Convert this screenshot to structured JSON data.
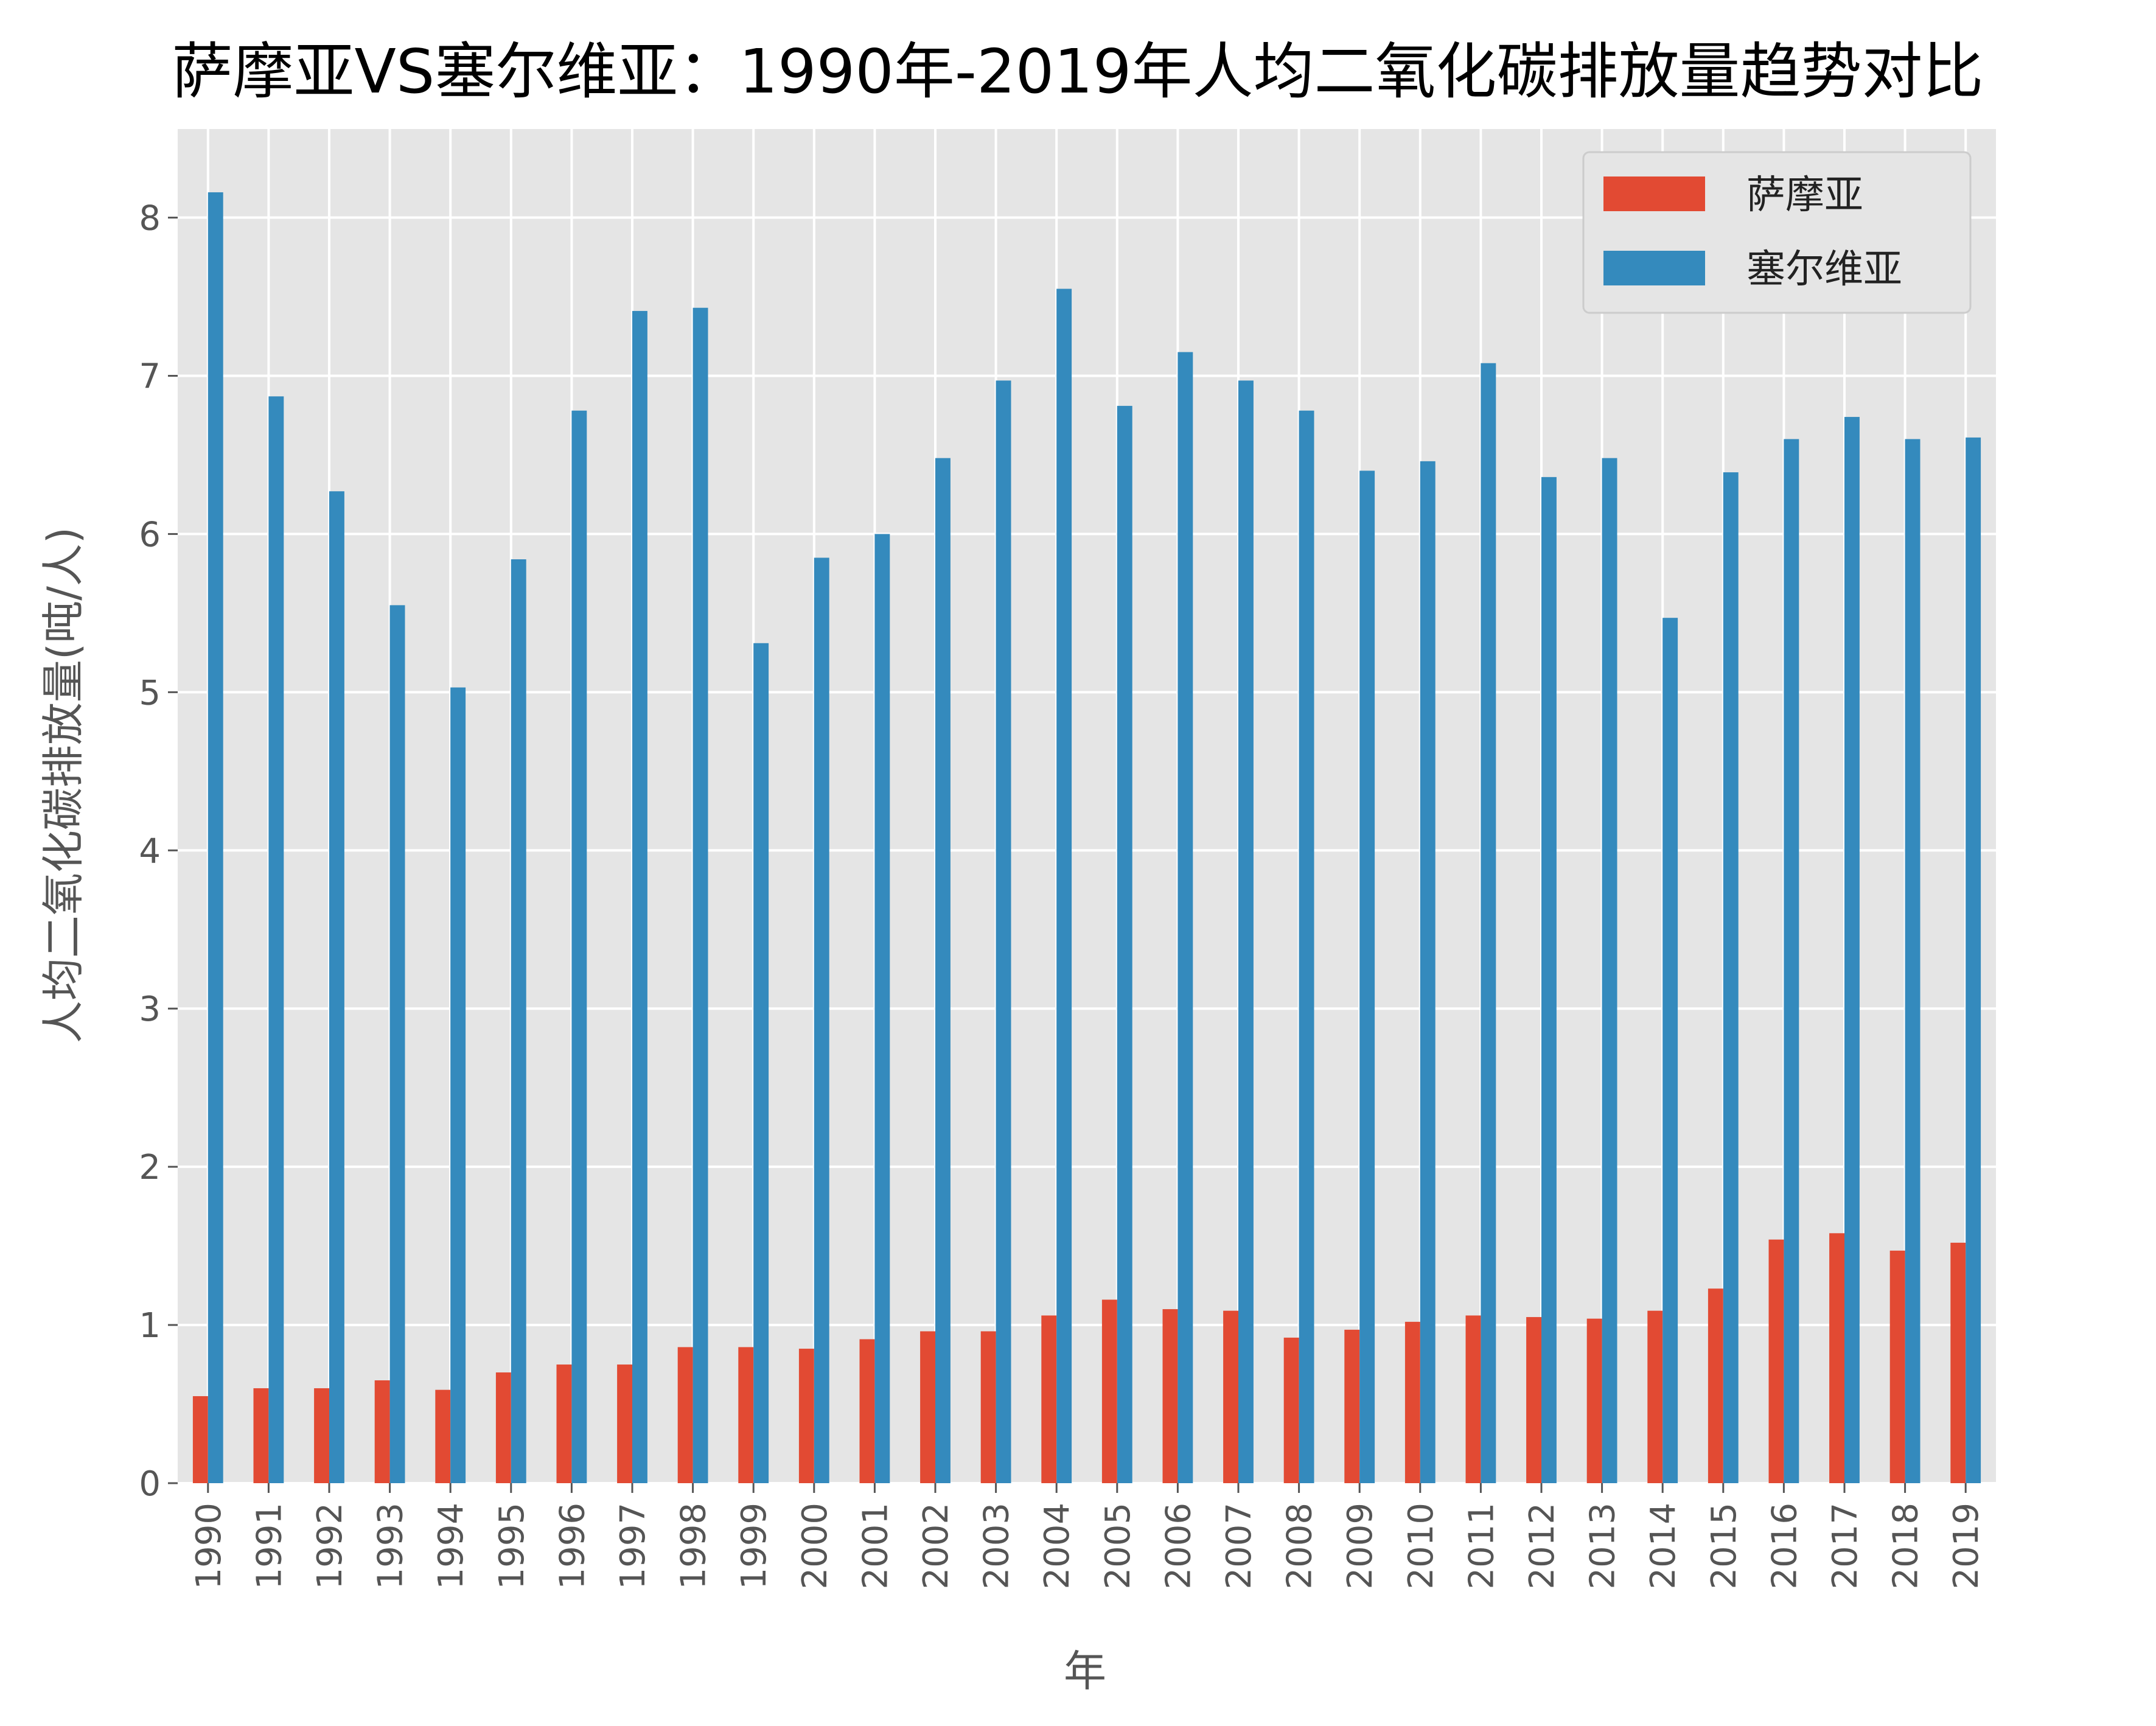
{
  "chart_data": {
    "type": "bar",
    "title": "萨摩亚VS塞尔维亚：1990年-2019年人均二氧化碳排放量趋势对比",
    "xlabel": "年",
    "ylabel": "人均二氧化碳排放量(吨/人)",
    "categories": [
      "1990",
      "1991",
      "1992",
      "1993",
      "1994",
      "1995",
      "1996",
      "1997",
      "1998",
      "1999",
      "2000",
      "2001",
      "2002",
      "2003",
      "2004",
      "2005",
      "2006",
      "2007",
      "2008",
      "2009",
      "2010",
      "2011",
      "2012",
      "2013",
      "2014",
      "2015",
      "2016",
      "2017",
      "2018",
      "2019"
    ],
    "series": [
      {
        "name": "萨摩亚",
        "color": "#E24A33",
        "values": [
          0.55,
          0.6,
          0.6,
          0.65,
          0.59,
          0.7,
          0.75,
          0.75,
          0.86,
          0.86,
          0.85,
          0.91,
          0.96,
          0.96,
          1.06,
          1.16,
          1.1,
          1.09,
          0.92,
          0.97,
          1.02,
          1.06,
          1.05,
          1.04,
          1.09,
          1.23,
          1.54,
          1.58,
          1.47,
          1.52
        ]
      },
      {
        "name": "塞尔维亚",
        "color": "#348ABD",
        "values": [
          8.16,
          6.87,
          6.27,
          5.55,
          5.03,
          5.84,
          6.78,
          7.41,
          7.43,
          5.31,
          5.85,
          6.0,
          6.48,
          6.97,
          7.55,
          6.81,
          7.15,
          6.97,
          6.78,
          6.4,
          6.46,
          7.08,
          6.36,
          6.48,
          5.47,
          6.39,
          6.6,
          6.74,
          6.6,
          6.61
        ]
      }
    ],
    "yticks": [
      0,
      1,
      2,
      3,
      4,
      5,
      6,
      7,
      8
    ],
    "ylim": [
      0,
      8.56
    ],
    "grid": true,
    "legend_position": "top-right",
    "plot_background": "#E5E5E5",
    "grid_color": "#FFFFFF"
  }
}
